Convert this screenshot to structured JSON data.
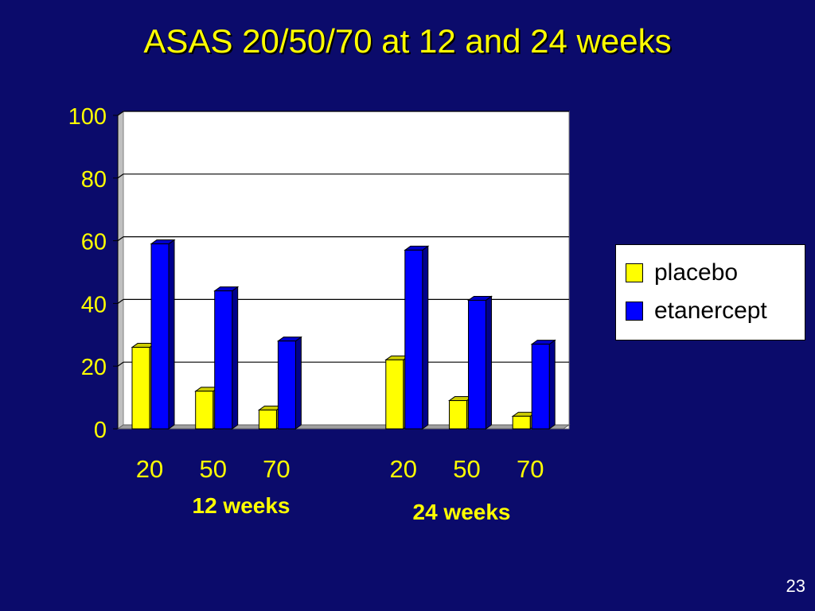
{
  "slide": {
    "title": "ASAS 20/50/70 at 12 and 24 weeks",
    "page_number": "23"
  },
  "colors": {
    "background": "#0b0b6b",
    "text": "#ffff00",
    "placebo": "#ffff00",
    "etanercept": "#0000ff"
  },
  "chart_data": {
    "type": "bar",
    "groups": [
      "12 weeks",
      "24 weeks"
    ],
    "categories": [
      "20",
      "50",
      "70",
      "20",
      "50",
      "70"
    ],
    "category_group": [
      0,
      0,
      0,
      1,
      1,
      1
    ],
    "series": [
      {
        "name": "placebo",
        "color": "#ffff00",
        "values": [
          26,
          12,
          6,
          22,
          9,
          4
        ]
      },
      {
        "name": "etanercept",
        "color": "#0000ff",
        "values": [
          59,
          44,
          28,
          57,
          41,
          27
        ]
      }
    ],
    "ylim": [
      0,
      100
    ],
    "yticks": [
      "0",
      "20",
      "40",
      "60",
      "80",
      "100"
    ],
    "grid": true,
    "legend_position": "right",
    "title": "ASAS 20/50/70 at 12 and 24 weeks",
    "xlabel": "",
    "ylabel": ""
  }
}
